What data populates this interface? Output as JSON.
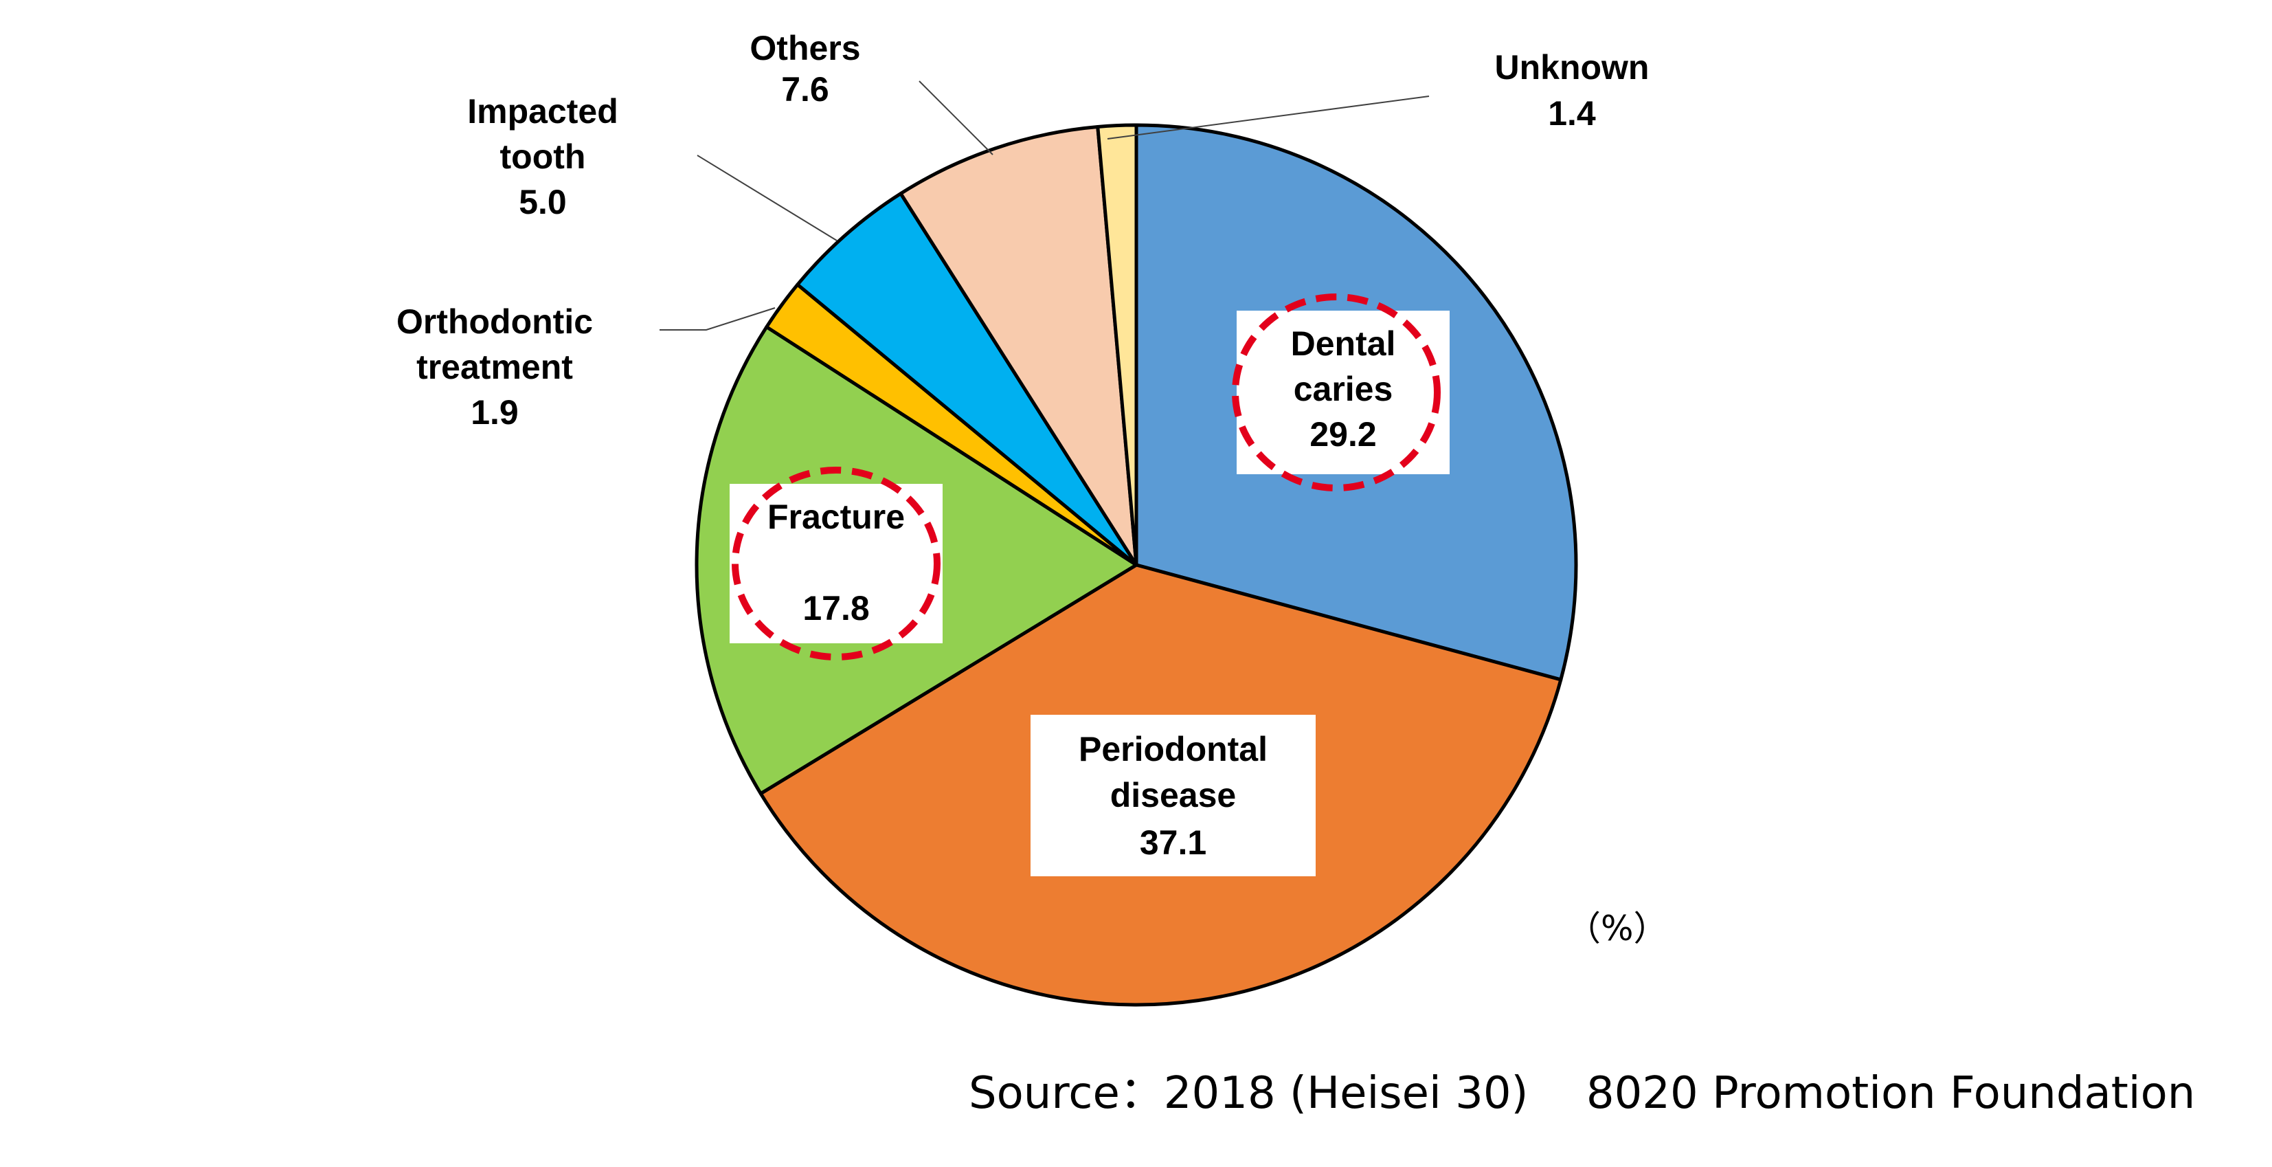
{
  "chart_data": {
    "type": "pie",
    "unit": "（%）",
    "source": "Source：2018 (Heisei 30)　 8020 Promotion Foundation",
    "slices": [
      {
        "key": "dental-caries",
        "label_lines": [
          "Dental",
          "caries"
        ],
        "value": 29.2,
        "value_text": "29.2",
        "color": "#5B9BD5",
        "highlighted": true
      },
      {
        "key": "periodontal-disease",
        "label_lines": [
          "Periodontal",
          "disease"
        ],
        "value": 37.1,
        "value_text": "37.1",
        "color": "#ED7D31",
        "highlighted": false
      },
      {
        "key": "fracture",
        "label_lines": [
          "Fracture",
          ""
        ],
        "value": 17.8,
        "value_text": "17.8",
        "color": "#92D050",
        "highlighted": true
      },
      {
        "key": "orthodontic-treatment",
        "label_lines": [
          "Orthodontic",
          "treatment"
        ],
        "value": 1.9,
        "value_text": "1.9",
        "color": "#FFC000",
        "highlighted": false
      },
      {
        "key": "impacted-tooth",
        "label_lines": [
          "Impacted",
          "tooth"
        ],
        "value": 5.0,
        "value_text": "5.0",
        "color": "#00B0F0",
        "highlighted": false
      },
      {
        "key": "others",
        "label_lines": [
          "Others"
        ],
        "value": 7.6,
        "value_text": "7.6",
        "color": "#F8CBAD",
        "highlighted": false
      },
      {
        "key": "unknown",
        "label_lines": [
          "Unknown"
        ],
        "value": 1.4,
        "value_text": "1.4",
        "color": "#FFE699",
        "highlighted": false
      }
    ]
  }
}
